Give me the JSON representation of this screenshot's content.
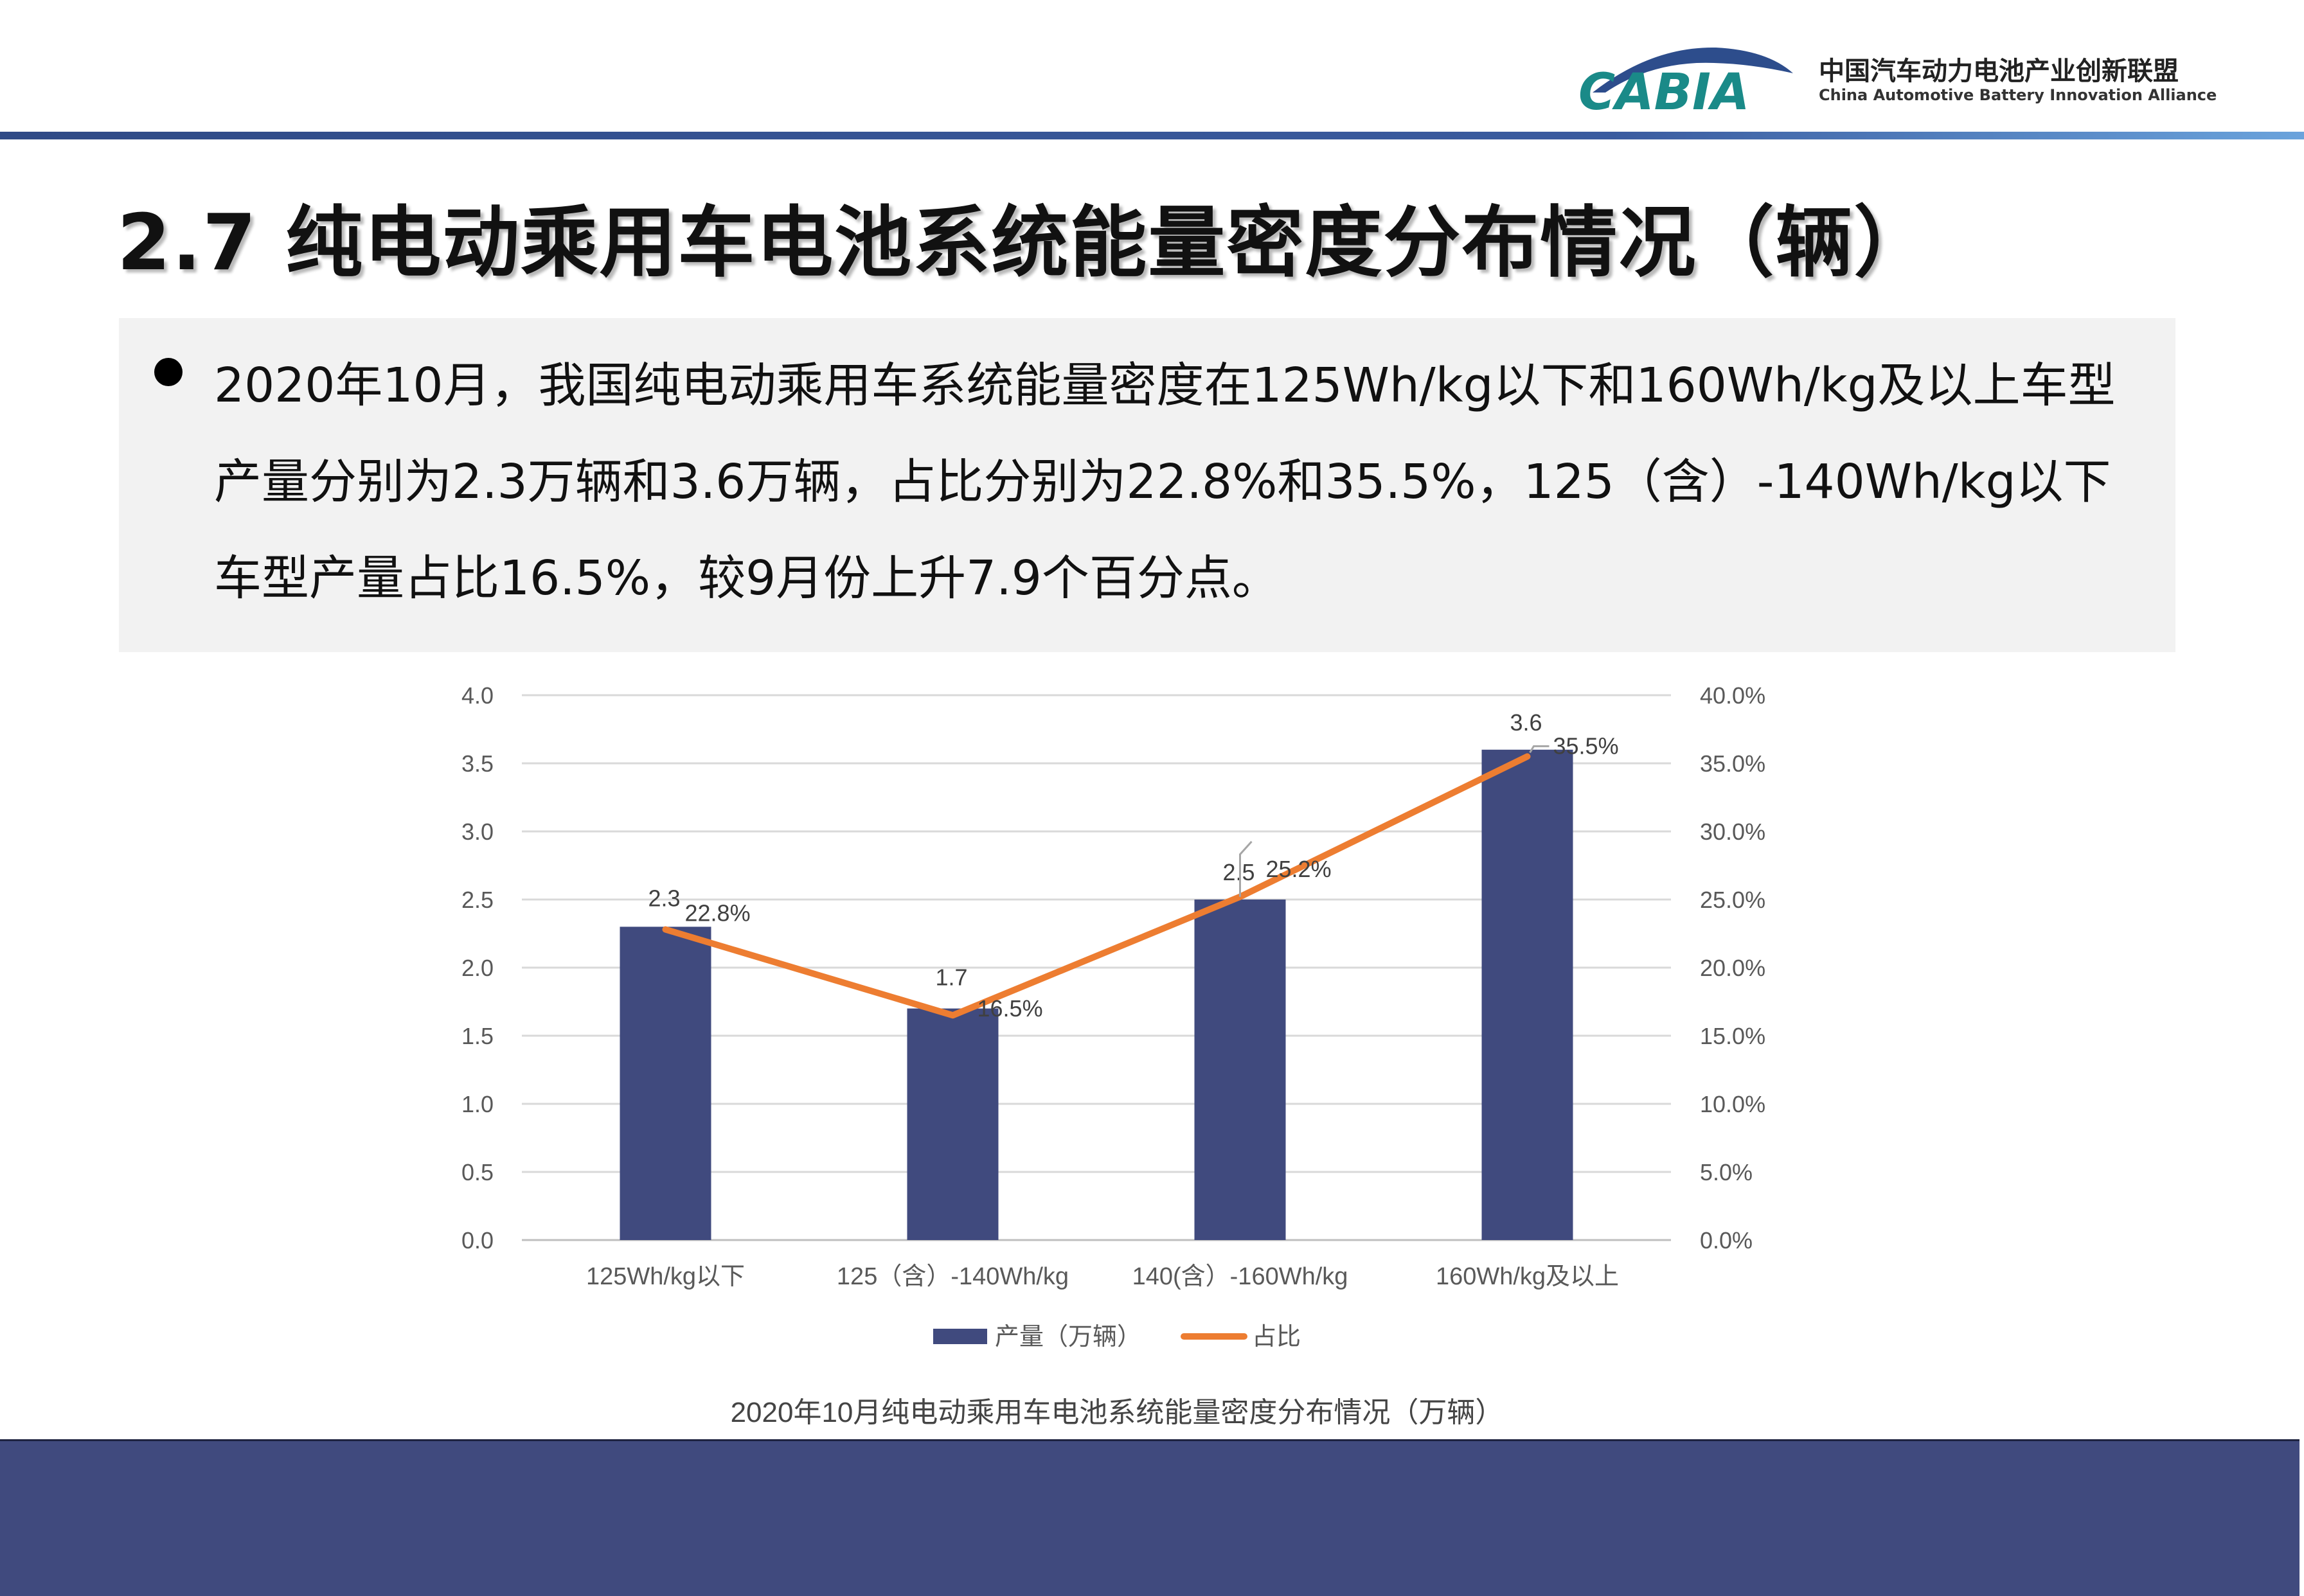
{
  "header": {
    "logo_text": "CABIA",
    "org_name_cn": "中国汽车动力电池产业创新联盟",
    "org_name_en": "China Automotive Battery Innovation Alliance"
  },
  "page_title": "2.7 纯电动乘用车电池系统能量密度分布情况（辆）",
  "summary": "2020年10月，我国纯电动乘用车系统能量密度在125Wh/kg以下和160Wh/kg及以上车型产量分别为2.3万辆和3.6万辆，占比分别为22.8%和35.5%，125（含）-140Wh/kg以下车型产量占比16.5%，较9月份上升7.9个百分点。",
  "chart_data": {
    "type": "bar",
    "title": "2020年10月纯电动乘用车电池系统能量密度分布情况（万辆）",
    "categories": [
      "125Wh/kg以下",
      "125（含）-140Wh/kg",
      "140(含）-160Wh/kg",
      "160Wh/kg及以上"
    ],
    "series": [
      {
        "name": "产量（万辆）",
        "type": "bar",
        "axis": "left",
        "color": "#404a7e",
        "values": [
          2.3,
          1.7,
          2.5,
          3.6
        ],
        "labels": [
          "2.3",
          "1.7",
          "2.5",
          "3.6"
        ]
      },
      {
        "name": "占比",
        "type": "line",
        "axis": "right",
        "color": "#ed7d31",
        "values": [
          22.8,
          16.5,
          25.2,
          35.5
        ],
        "labels": [
          "22.8%",
          "16.5%",
          "25.2%",
          "35.5%"
        ]
      }
    ],
    "ylim": [
      0,
      4.0
    ],
    "y2lim": [
      0,
      40.0
    ],
    "y_ticks": [
      "0.0",
      "0.5",
      "1.0",
      "1.5",
      "2.0",
      "2.5",
      "3.0",
      "3.5",
      "4.0"
    ],
    "y2_ticks": [
      "0.0%",
      "5.0%",
      "10.0%",
      "15.0%",
      "20.0%",
      "25.0%",
      "30.0%",
      "35.0%",
      "40.0%"
    ],
    "grid": true,
    "legend_position": "bottom"
  },
  "colors": {
    "accent": "#404a7e",
    "line": "#ed7d31",
    "header_bar": "#2f4a86",
    "logo_teal": "#1a8a88"
  }
}
